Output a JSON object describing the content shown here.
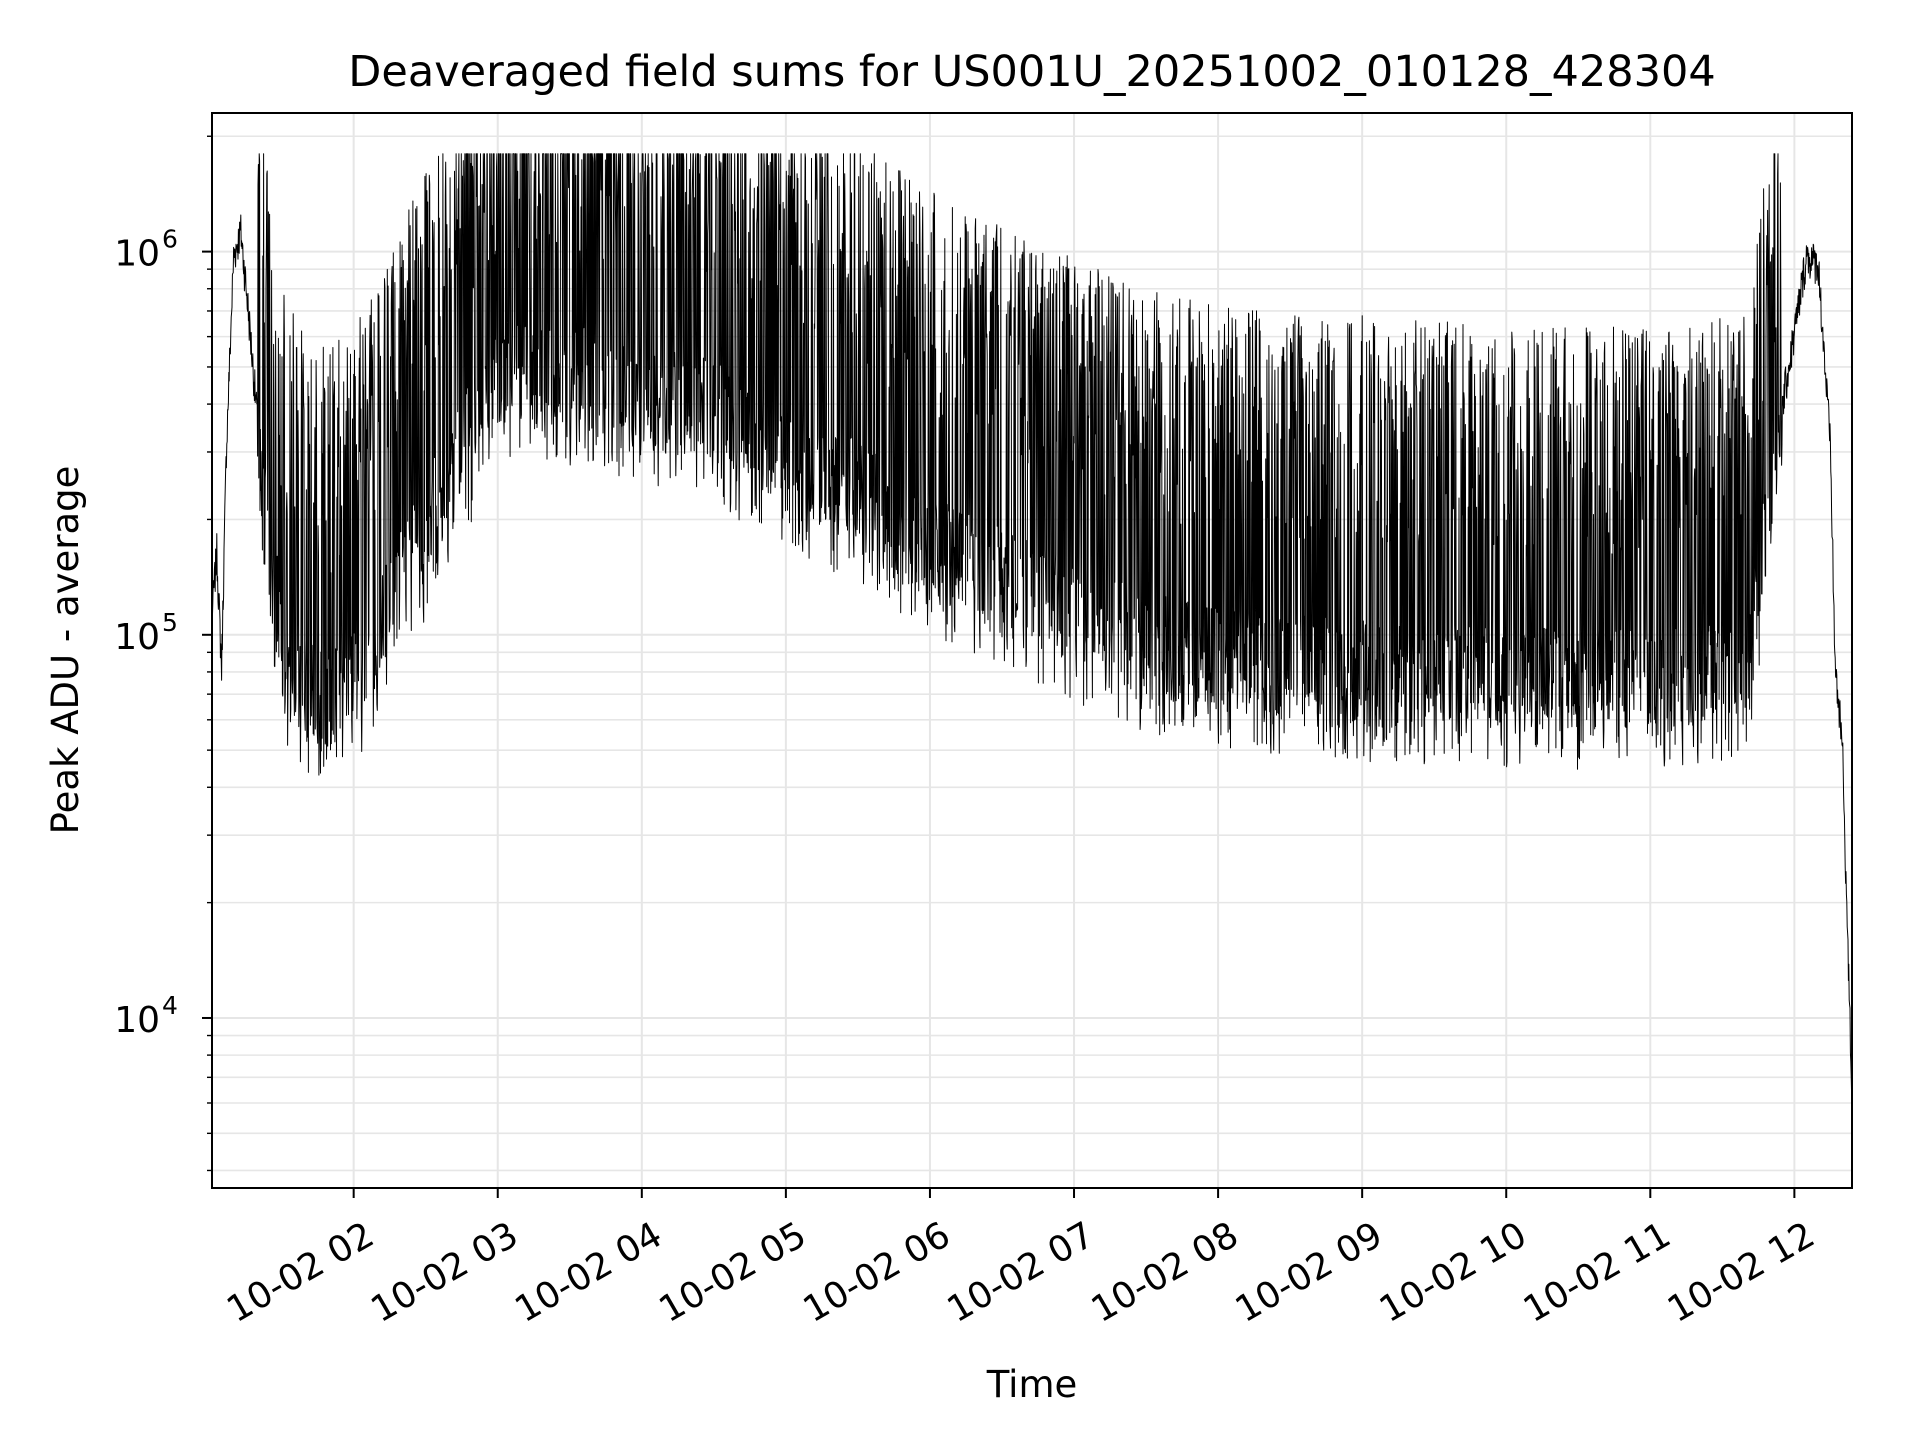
{
  "chart_data": {
    "type": "line",
    "title": "Deaveraged field sums for US001U_20251002_010128_428304",
    "xlabel": "Time",
    "ylabel": "Peak ADU - average",
    "yscale": "log",
    "ylim": [
      3600,
      2300000
    ],
    "xlim": [
      "2025-10-02 01:01",
      "2025-10-02 12:24"
    ],
    "x_ticks": [
      {
        "label": "10-02 02",
        "time": "2025-10-02 02:00"
      },
      {
        "label": "10-02 03",
        "time": "2025-10-02 03:00"
      },
      {
        "label": "10-02 04",
        "time": "2025-10-02 04:00"
      },
      {
        "label": "10-02 05",
        "time": "2025-10-02 05:00"
      },
      {
        "label": "10-02 06",
        "time": "2025-10-02 06:00"
      },
      {
        "label": "10-02 07",
        "time": "2025-10-02 07:00"
      },
      {
        "label": "10-02 08",
        "time": "2025-10-02 08:00"
      },
      {
        "label": "10-02 09",
        "time": "2025-10-02 09:00"
      },
      {
        "label": "10-02 10",
        "time": "2025-10-02 10:00"
      },
      {
        "label": "10-02 11",
        "time": "2025-10-02 11:00"
      },
      {
        "label": "10-02 12",
        "time": "2025-10-02 12:00"
      }
    ],
    "y_ticks": [
      {
        "base": "10",
        "exp": "4",
        "value": 10000
      },
      {
        "base": "10",
        "exp": "5",
        "value": 100000
      },
      {
        "base": "10",
        "exp": "6",
        "value": 1000000
      }
    ],
    "grid": true,
    "line_color": "#000000",
    "grid_color": "#e6e6e6",
    "series": [
      {
        "values": [
          [
            "2025-10-02 01:01",
            110000
          ],
          [
            "2025-10-02 01:03",
            160000
          ],
          [
            "2025-10-02 01:05",
            80000
          ],
          [
            "2025-10-02 01:07",
            300000
          ],
          [
            "2025-10-02 01:10",
            950000
          ],
          [
            "2025-10-02 01:13",
            1100000
          ],
          [
            "2025-10-02 01:16",
            700000
          ],
          [
            "2025-10-02 01:20",
            350000
          ],
          [
            "2025-10-02 01:25",
            180000
          ],
          [
            "2025-10-02 01:30",
            100000
          ],
          [
            "2025-10-02 01:40",
            75000
          ],
          [
            "2025-10-02 01:50",
            70000
          ],
          [
            "2025-10-02 02:00",
            80000
          ],
          [
            "2025-10-02 02:30",
            200000
          ],
          [
            "2025-10-02 03:00",
            500000
          ],
          [
            "2025-10-02 03:30",
            500000
          ],
          [
            "2025-10-02 04:00",
            450000
          ],
          [
            "2025-10-02 04:30",
            400000
          ],
          [
            "2025-10-02 05:00",
            300000
          ],
          [
            "2025-10-02 05:30",
            250000
          ],
          [
            "2025-10-02 06:00",
            180000
          ],
          [
            "2025-10-02 06:30",
            150000
          ],
          [
            "2025-10-02 07:00",
            120000
          ],
          [
            "2025-10-02 07:30",
            100000
          ],
          [
            "2025-10-02 08:00",
            90000
          ],
          [
            "2025-10-02 09:00",
            85000
          ],
          [
            "2025-10-02 10:00",
            80000
          ],
          [
            "2025-10-02 11:00",
            80000
          ],
          [
            "2025-10-02 11:40",
            85000
          ],
          [
            "2025-10-02 11:50",
            250000
          ],
          [
            "2025-10-02 12:00",
            600000
          ],
          [
            "2025-10-02 12:05",
            950000
          ],
          [
            "2025-10-02 12:10",
            900000
          ],
          [
            "2025-10-02 12:15",
            300000
          ],
          [
            "2025-10-02 12:17",
            80000
          ],
          [
            "2025-10-02 12:20",
            50000
          ],
          [
            "2025-10-02 12:24",
            6000
          ]
        ]
      }
    ]
  }
}
